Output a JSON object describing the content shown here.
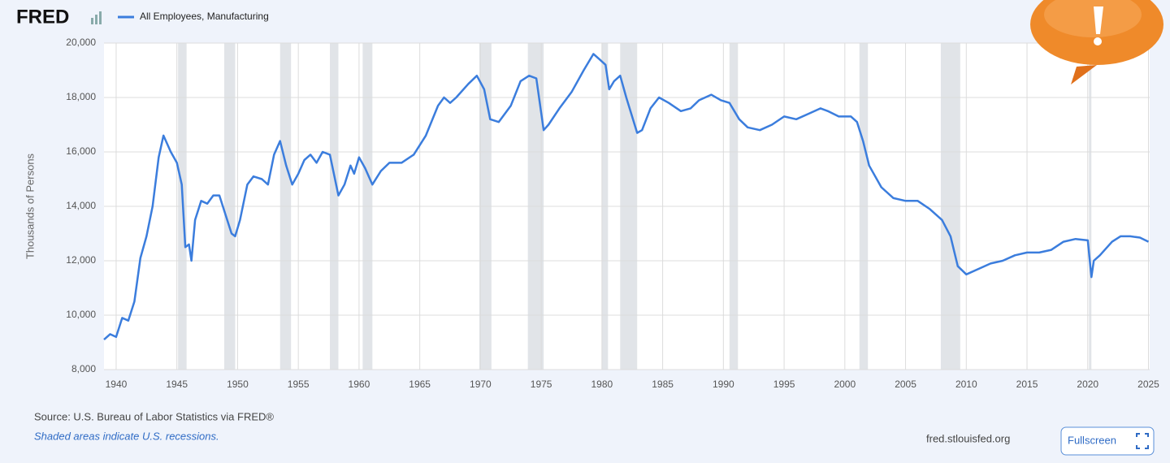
{
  "chart_data": {
    "type": "line",
    "logo": "FRED",
    "y_label": "Thousands of Persons",
    "source": "Source: U.S. Bureau of Labor Statistics via FRED®",
    "note": "Shaded areas indicate U.S. recessions.",
    "site": "fred.stlouisfed.org",
    "button": "Fullscreen",
    "grid": true,
    "xlim": [
      1939,
      2025.1
    ],
    "xticks": [
      1940,
      1945,
      1950,
      1955,
      1960,
      1965,
      1970,
      1975,
      1980,
      1985,
      1990,
      1995,
      2000,
      2005,
      2010,
      2015,
      2020,
      2025
    ],
    "ylim": [
      8000,
      20000
    ],
    "yticks": [
      {
        "value": 8000,
        "label": "8,000"
      },
      {
        "value": 10000,
        "label": "10,000"
      },
      {
        "value": 12000,
        "label": "12,000"
      },
      {
        "value": 14000,
        "label": "14,000"
      },
      {
        "value": 16000,
        "label": "16,000"
      },
      {
        "value": 18000,
        "label": "18,000"
      },
      {
        "value": 20000,
        "label": "20,000"
      }
    ],
    "recessions": [
      [
        1945.1,
        1945.8
      ],
      [
        1948.9,
        1949.8
      ],
      [
        1953.5,
        1954.4
      ],
      [
        1957.6,
        1958.3
      ],
      [
        1960.3,
        1961.1
      ],
      [
        1969.9,
        1970.9
      ],
      [
        1973.9,
        1975.2
      ],
      [
        1980.0,
        1980.5
      ],
      [
        1981.5,
        1982.9
      ],
      [
        1990.5,
        1991.2
      ],
      [
        2001.2,
        2001.9
      ],
      [
        2007.9,
        2009.5
      ],
      [
        2020.1,
        2020.3
      ]
    ],
    "x": [
      1939.0,
      1939.5,
      1940.0,
      1940.5,
      1941.0,
      1941.5,
      1942.0,
      1942.5,
      1943.0,
      1943.5,
      1943.9,
      1944.5,
      1945.0,
      1945.4,
      1945.7,
      1946.0,
      1946.2,
      1946.5,
      1947.0,
      1947.5,
      1948.0,
      1948.5,
      1949.0,
      1949.5,
      1949.8,
      1950.2,
      1950.8,
      1951.3,
      1952.0,
      1952.5,
      1953.0,
      1953.5,
      1954.0,
      1954.5,
      1955.0,
      1955.5,
      1956.0,
      1956.5,
      1957.0,
      1957.6,
      1958.3,
      1958.8,
      1959.3,
      1959.6,
      1960.0,
      1960.5,
      1961.1,
      1961.8,
      1962.5,
      1963.5,
      1964.5,
      1965.5,
      1966.5,
      1967.0,
      1967.5,
      1968.0,
      1969.0,
      1969.7,
      1970.3,
      1970.8,
      1971.5,
      1972.5,
      1973.3,
      1974.0,
      1974.6,
      1975.2,
      1975.6,
      1976.5,
      1977.5,
      1978.5,
      1979.3,
      1979.8,
      1980.3,
      1980.6,
      1981.0,
      1981.5,
      1982.0,
      1982.9,
      1983.3,
      1984.0,
      1984.7,
      1985.5,
      1986.5,
      1987.3,
      1988.0,
      1989.0,
      1989.8,
      1990.5,
      1991.3,
      1992.0,
      1993.0,
      1994.0,
      1995.0,
      1996.0,
      1997.0,
      1998.0,
      1998.6,
      1999.5,
      2000.5,
      2001.0,
      2001.5,
      2002.0,
      2003.0,
      2004.0,
      2005.0,
      2006.0,
      2007.0,
      2008.0,
      2008.7,
      2009.3,
      2010.0,
      2011.0,
      2012.0,
      2013.0,
      2014.0,
      2015.0,
      2016.0,
      2017.0,
      2018.0,
      2019.0,
      2020.0,
      2020.3,
      2020.5,
      2021.0,
      2022.0,
      2022.7,
      2023.5,
      2024.3,
      2025.0
    ],
    "series": [
      {
        "name": "All Employees, Manufacturing",
        "color": "#3b7ddd",
        "values": [
          9100,
          9300,
          9200,
          9900,
          9800,
          10500,
          12100,
          12900,
          14000,
          15800,
          16600,
          16000,
          15600,
          14800,
          12500,
          12600,
          12000,
          13500,
          14200,
          14100,
          14400,
          14400,
          13700,
          13000,
          12900,
          13500,
          14800,
          15100,
          15000,
          14800,
          15900,
          16400,
          15500,
          14800,
          15200,
          15700,
          15900,
          15600,
          16000,
          15900,
          14400,
          14800,
          15500,
          15200,
          15800,
          15400,
          14800,
          15300,
          15600,
          15600,
          15900,
          16600,
          17700,
          18000,
          17800,
          18000,
          18500,
          18800,
          18300,
          17200,
          17100,
          17700,
          18600,
          18800,
          18700,
          16800,
          17000,
          17600,
          18200,
          19000,
          19600,
          19400,
          19200,
          18300,
          18600,
          18800,
          18000,
          16700,
          16800,
          17600,
          18000,
          17800,
          17500,
          17600,
          17900,
          18100,
          17900,
          17800,
          17200,
          16900,
          16800,
          17000,
          17300,
          17200,
          17400,
          17600,
          17500,
          17300,
          17300,
          17100,
          16400,
          15500,
          14700,
          14300,
          14200,
          14200,
          13900,
          13500,
          12900,
          11800,
          11500,
          11700,
          11900,
          12000,
          12200,
          12300,
          12300,
          12400,
          12700,
          12800,
          12750,
          11400,
          12000,
          12200,
          12700,
          12900,
          12900,
          12850,
          12700
        ]
      }
    ]
  }
}
